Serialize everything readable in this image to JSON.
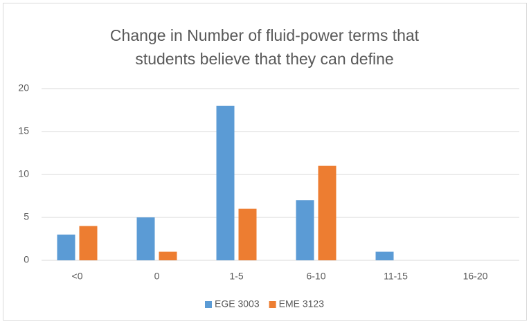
{
  "chart_data": {
    "type": "bar",
    "title": "Change in Number of fluid-power terms that students believe that they can define",
    "categories": [
      "<0",
      "0",
      "1-5",
      "6-10",
      "11-15",
      "16-20"
    ],
    "series": [
      {
        "name": "EGE 3003",
        "color": "#5b9bd5",
        "values": [
          3,
          5,
          18,
          7,
          1,
          0
        ]
      },
      {
        "name": "EME 3123",
        "color": "#ed7d31",
        "values": [
          4,
          1,
          6,
          11,
          0,
          0
        ]
      }
    ],
    "ylim": [
      0,
      20
    ],
    "yticks": [
      0,
      5,
      10,
      15,
      20
    ],
    "grid": true,
    "legend": "bottom"
  }
}
